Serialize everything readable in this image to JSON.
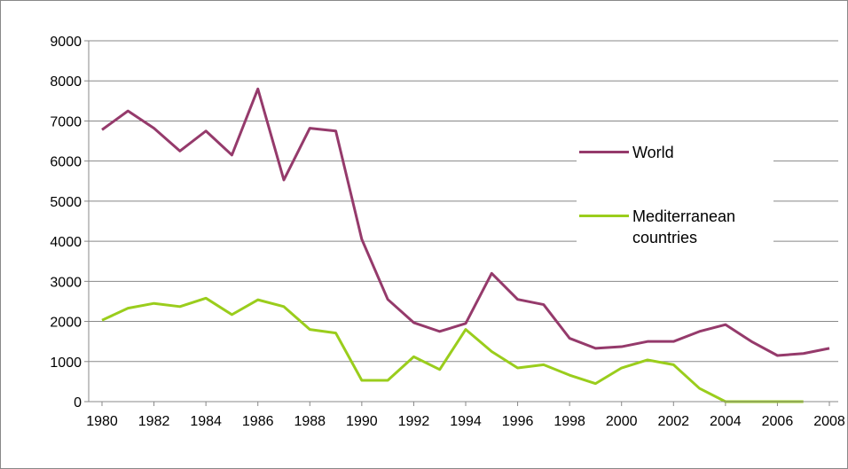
{
  "chart_data": {
    "type": "line",
    "x": [
      1980,
      1981,
      1982,
      1983,
      1984,
      1985,
      1986,
      1987,
      1988,
      1989,
      1990,
      1991,
      1992,
      1993,
      1994,
      1995,
      1996,
      1997,
      1998,
      1999,
      2000,
      2001,
      2002,
      2003,
      2004,
      2005,
      2006,
      2007,
      2008
    ],
    "series": [
      {
        "name": "World",
        "color": "#953a6b",
        "values": [
          6780,
          7250,
          6820,
          6250,
          6750,
          6150,
          7800,
          5530,
          6820,
          6750,
          4050,
          2550,
          1970,
          1750,
          1950,
          3200,
          2550,
          2420,
          1580,
          1330,
          1370,
          1500,
          1500,
          1750,
          1920,
          1500,
          1150,
          1200,
          1330
        ]
      },
      {
        "name": "Mediterranean countries",
        "color": "#9acd1c",
        "values": [
          2030,
          2330,
          2450,
          2370,
          2580,
          2170,
          2540,
          2370,
          1800,
          1710,
          530,
          530,
          1120,
          800,
          1800,
          1250,
          840,
          920,
          660,
          450,
          840,
          1040,
          920,
          330,
          0,
          0,
          0,
          0,
          null
        ]
      }
    ],
    "xlim": [
      1980,
      2008
    ],
    "xticks": [
      1980,
      1982,
      1984,
      1986,
      1988,
      1990,
      1992,
      1994,
      1996,
      1998,
      2000,
      2002,
      2004,
      2006,
      2008
    ],
    "ylim": [
      0,
      9000
    ],
    "yticks": [
      0,
      1000,
      2000,
      3000,
      4000,
      5000,
      6000,
      7000,
      8000,
      9000
    ],
    "grid": true,
    "legend": "right"
  }
}
